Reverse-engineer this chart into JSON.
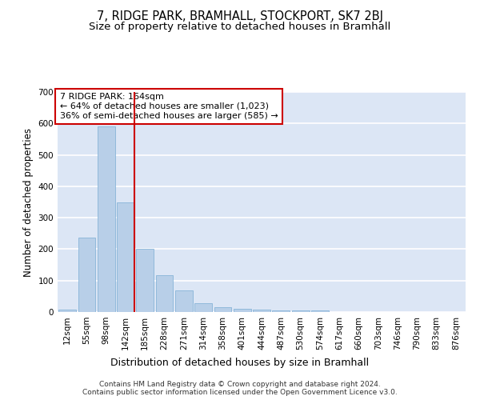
{
  "title": "7, RIDGE PARK, BRAMHALL, STOCKPORT, SK7 2BJ",
  "subtitle": "Size of property relative to detached houses in Bramhall",
  "xlabel": "Distribution of detached houses by size in Bramhall",
  "ylabel": "Number of detached properties",
  "categories": [
    "12sqm",
    "55sqm",
    "98sqm",
    "142sqm",
    "185sqm",
    "228sqm",
    "271sqm",
    "314sqm",
    "358sqm",
    "401sqm",
    "444sqm",
    "487sqm",
    "530sqm",
    "574sqm",
    "617sqm",
    "660sqm",
    "703sqm",
    "746sqm",
    "790sqm",
    "833sqm",
    "876sqm"
  ],
  "values": [
    7,
    237,
    590,
    350,
    202,
    118,
    70,
    28,
    16,
    11,
    7,
    5,
    5,
    4,
    0,
    0,
    0,
    0,
    0,
    0,
    0
  ],
  "bar_color": "#b8cfe8",
  "bar_edge_color": "#7aadd4",
  "bg_color": "#dce6f5",
  "grid_color": "#ffffff",
  "vline_color": "#cc0000",
  "annotation_text": "7 RIDGE PARK: 164sqm\n← 64% of detached houses are smaller (1,023)\n36% of semi-detached houses are larger (585) →",
  "annotation_box_color": "#ffffff",
  "annotation_box_edge": "#cc0000",
  "ylim": [
    0,
    700
  ],
  "yticks": [
    0,
    100,
    200,
    300,
    400,
    500,
    600,
    700
  ],
  "footer": "Contains HM Land Registry data © Crown copyright and database right 2024.\nContains public sector information licensed under the Open Government Licence v3.0.",
  "title_fontsize": 10.5,
  "subtitle_fontsize": 9.5,
  "xlabel_fontsize": 9,
  "ylabel_fontsize": 8.5,
  "tick_fontsize": 7.5,
  "annotation_fontsize": 8,
  "footer_fontsize": 6.5
}
